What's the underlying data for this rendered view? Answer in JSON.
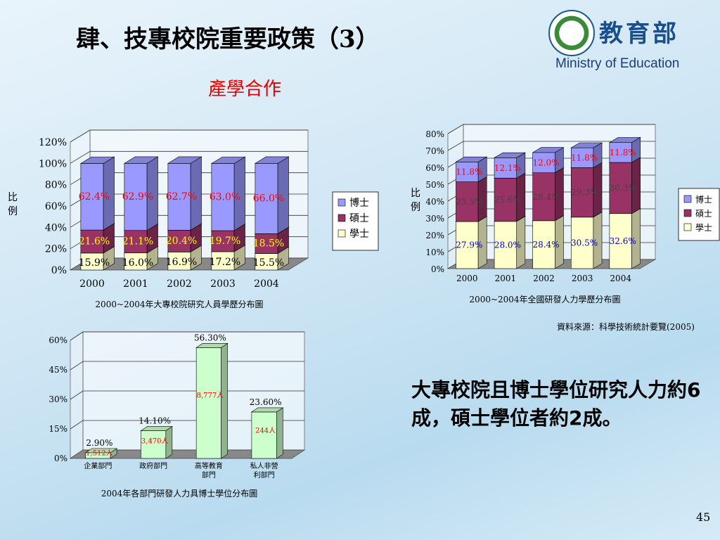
{
  "slide": {
    "title": "肆、技專校院重要政策（3）",
    "subtitle": "產學合作",
    "logo_cn": "教育部",
    "logo_en": "Ministry of Education",
    "conclusion": "大專校院且博士學位研究人力約6成，碩士學位者約2成。",
    "source": "資料來源：科學技術統計要覽(2005)",
    "page_number": "45"
  },
  "colors": {
    "phd": "#9999ff",
    "master": "#993366",
    "bachelor": "#ffffcc",
    "green_bar": "#ccffcc"
  },
  "chart_data": [
    {
      "type": "bar",
      "stacked": true,
      "title": "2000~2004年大專校院研究人員學歷分布圖",
      "ylabel": "比例",
      "categories": [
        "2000",
        "2001",
        "2002",
        "2003",
        "2004"
      ],
      "ylim": [
        0,
        120
      ],
      "yticks": [
        "0%",
        "20%",
        "40%",
        "60%",
        "80%",
        "100%",
        "120%"
      ],
      "series": [
        {
          "name": "學士",
          "values": [
            15.9,
            16.0,
            16.9,
            17.2,
            15.5
          ],
          "labels": [
            "15.9%",
            "16.0%",
            "16.9%",
            "17.2%",
            "15.5%"
          ]
        },
        {
          "name": "碩士",
          "values": [
            21.6,
            21.1,
            20.4,
            19.7,
            18.5
          ],
          "labels": [
            "21.6%",
            "21.1%",
            "20.4%",
            "19.7%",
            "18.5%"
          ]
        },
        {
          "name": "博士",
          "values": [
            62.4,
            62.9,
            62.7,
            63.0,
            66.0
          ],
          "labels": [
            "62.4%",
            "62.9%",
            "62.7%",
            "63.0%",
            "66.0%"
          ]
        }
      ],
      "legend": [
        "博士",
        "碩士",
        "學士"
      ],
      "legend_position": "right"
    },
    {
      "type": "bar",
      "stacked": true,
      "title": "2000~2004年全國研發人力學歷分布圖",
      "ylabel": "比例",
      "categories": [
        "2000",
        "2001",
        "2002",
        "2003",
        "2004"
      ],
      "ylim": [
        0,
        80
      ],
      "yticks": [
        "0%",
        "10%",
        "20%",
        "30%",
        "40%",
        "50%",
        "60%",
        "70%",
        "80%"
      ],
      "series": [
        {
          "name": "學士",
          "values": [
            27.9,
            28.0,
            28.4,
            30.5,
            32.6
          ],
          "labels": [
            "27.9%",
            "28.0%",
            "28.4%",
            "30.5%",
            "32.6%"
          ]
        },
        {
          "name": "碩士",
          "values": [
            23.5,
            25.6,
            28.4,
            29.3,
            30.3
          ],
          "labels": [
            "23.5%",
            "25.6%",
            "28.4%",
            "29.3%",
            "30.3%"
          ]
        },
        {
          "name": "博士",
          "values": [
            11.8,
            12.1,
            12.0,
            11.8,
            11.8
          ],
          "labels": [
            "11.8%",
            "12.1%",
            "12.0%",
            "11.8%",
            "11.8%"
          ]
        }
      ],
      "legend": [
        "博士",
        "碩士",
        "學士"
      ],
      "legend_position": "right"
    },
    {
      "type": "bar",
      "title": "2004年各部門研發人力具博士學位分布圖",
      "categories": [
        "企業部門",
        "政府部門",
        "高等教育部門",
        "私人非營利部門"
      ],
      "category_lines": [
        [
          "企業部門"
        ],
        [
          "政府部門"
        ],
        [
          "高等教育",
          "部門"
        ],
        [
          "私人非營",
          "利部門"
        ]
      ],
      "values": [
        2.9,
        14.1,
        56.3,
        23.6
      ],
      "value_labels": [
        "2.90%",
        "14.10%",
        "56.30%",
        "23.60%"
      ],
      "count_labels": [
        "1,512人",
        "3,470人",
        "8,777人",
        "244人"
      ],
      "ylim": [
        0,
        60
      ],
      "yticks": [
        "0%",
        "15%",
        "30%",
        "45%",
        "60%"
      ]
    }
  ]
}
